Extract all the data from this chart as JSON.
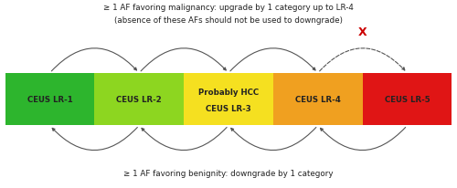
{
  "boxes": [
    {
      "label": "CEUS LR-1",
      "sublabel": "",
      "color": "#2db52d"
    },
    {
      "label": "CEUS LR-2",
      "sublabel": "",
      "color": "#8dd620"
    },
    {
      "label": "CEUS LR-3",
      "sublabel": "Probably HCC",
      "color": "#f5e020"
    },
    {
      "label": "CEUS LR-4",
      "sublabel": "",
      "color": "#f0a020"
    },
    {
      "label": "CEUS LR-5",
      "sublabel": "",
      "color": "#e01515"
    }
  ],
  "top_text_line1": "≥ 1 AF favoring malignancy: upgrade by 1 category up to LR-4",
  "top_text_line2": "(absence of these AFs should not be used to downgrade)",
  "bottom_text": "≥ 1 AF favoring benignity: downgrade by 1 category",
  "text_color": "#222222",
  "arrow_color": "#555555",
  "cross_color": "#cc0000",
  "bg_color": "#ffffff"
}
